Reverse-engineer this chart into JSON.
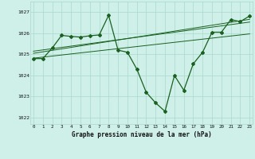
{
  "title": "Graphe pression niveau de la mer (hPa)",
  "bg_color": "#cef0e8",
  "grid_color": "#aad8cc",
  "line_color": "#1a6020",
  "ylim": [
    1021.7,
    1027.5
  ],
  "xlim": [
    -0.3,
    23.3
  ],
  "yticks": [
    1022,
    1023,
    1024,
    1025,
    1026,
    1027
  ],
  "xtick_labels": [
    "0",
    "1",
    "2",
    "3",
    "4",
    "5",
    "6",
    "7",
    "8",
    "9",
    "10",
    "11",
    "12",
    "13",
    "14",
    "15",
    "16",
    "17",
    "18",
    "19",
    "20",
    "21",
    "22",
    "23"
  ],
  "main_line_x": [
    0,
    1,
    2,
    3,
    4,
    5,
    6,
    7,
    8,
    9,
    10,
    11,
    12,
    13,
    14,
    15,
    16,
    17,
    18,
    19,
    20,
    21,
    22,
    23
  ],
  "main_line_y": [
    1024.8,
    1024.8,
    1025.3,
    1025.9,
    1025.85,
    1025.82,
    1025.88,
    1025.92,
    1026.85,
    1025.2,
    1025.1,
    1024.3,
    1023.2,
    1022.7,
    1022.3,
    1024.0,
    1023.3,
    1024.55,
    1025.1,
    1026.05,
    1026.05,
    1026.65,
    1026.55,
    1026.82
  ],
  "trend_line1_y": [
    1024.82,
    1024.87,
    1024.92,
    1024.97,
    1025.02,
    1025.07,
    1025.12,
    1025.17,
    1025.22,
    1025.27,
    1025.32,
    1025.37,
    1025.42,
    1025.47,
    1025.52,
    1025.57,
    1025.62,
    1025.67,
    1025.72,
    1025.77,
    1025.82,
    1025.87,
    1025.92,
    1025.97
  ],
  "trend_line2_y": [
    1025.05,
    1025.12,
    1025.19,
    1025.26,
    1025.33,
    1025.4,
    1025.47,
    1025.54,
    1025.61,
    1025.68,
    1025.75,
    1025.82,
    1025.89,
    1025.96,
    1026.03,
    1026.1,
    1026.17,
    1026.24,
    1026.31,
    1026.38,
    1026.45,
    1026.52,
    1026.59,
    1026.66
  ],
  "trend_line3_y": [
    1025.15,
    1025.21,
    1025.27,
    1025.33,
    1025.39,
    1025.45,
    1025.51,
    1025.57,
    1025.63,
    1025.69,
    1025.75,
    1025.81,
    1025.87,
    1025.93,
    1025.99,
    1026.05,
    1026.11,
    1026.17,
    1026.23,
    1026.29,
    1026.35,
    1026.41,
    1026.47,
    1026.53
  ]
}
